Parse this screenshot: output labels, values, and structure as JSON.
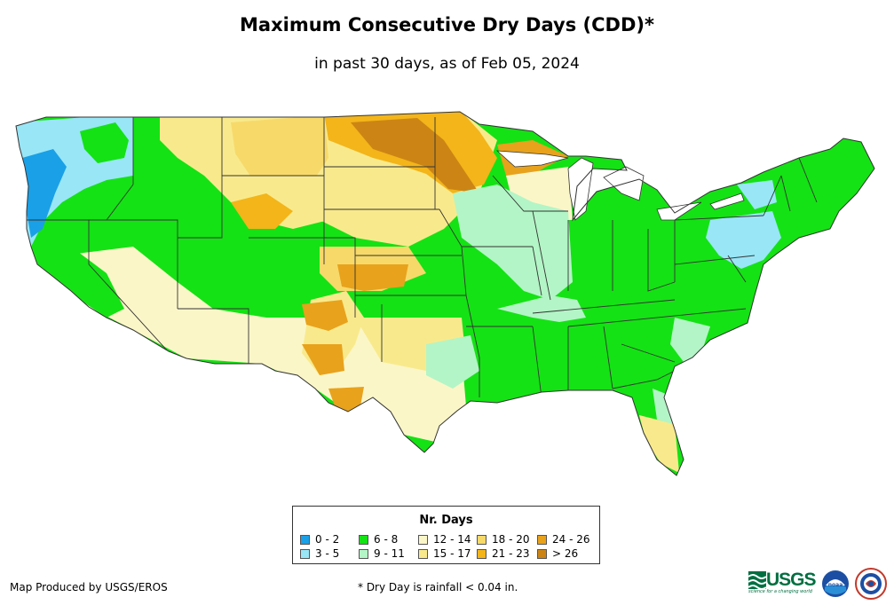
{
  "title": "Maximum Consecutive Dry Days (CDD)*",
  "subtitle": "in past 30 days, as of Feb 05, 2024",
  "legend": {
    "title": "Nr. Days",
    "items": [
      {
        "label": "0 - 2",
        "color": "#1aa0e6"
      },
      {
        "label": "3 - 5",
        "color": "#99e6f7"
      },
      {
        "label": "6 - 8",
        "color": "#14e214"
      },
      {
        "label": "9 - 11",
        "color": "#b3f5c6"
      },
      {
        "label": "12 - 14",
        "color": "#fbf6c8"
      },
      {
        "label": "15 - 17",
        "color": "#f8ea8c"
      },
      {
        "label": "18 - 20",
        "color": "#f7d96a"
      },
      {
        "label": "21 - 23",
        "color": "#f3b51a"
      },
      {
        "label": "24 - 26",
        "color": "#e8a21c"
      },
      {
        "label": "> 26",
        "color": "#cc8514"
      }
    ]
  },
  "footer": {
    "producer": "Map Produced by USGS/EROS",
    "note": "* Dry Day is rainfall < 0.04 in."
  },
  "logos": {
    "usgs": "USGS",
    "usgs_tagline": "science for a changing world",
    "noaa": "noaa"
  },
  "colors": {
    "state_border": "#333333",
    "background": "#ffffff"
  }
}
